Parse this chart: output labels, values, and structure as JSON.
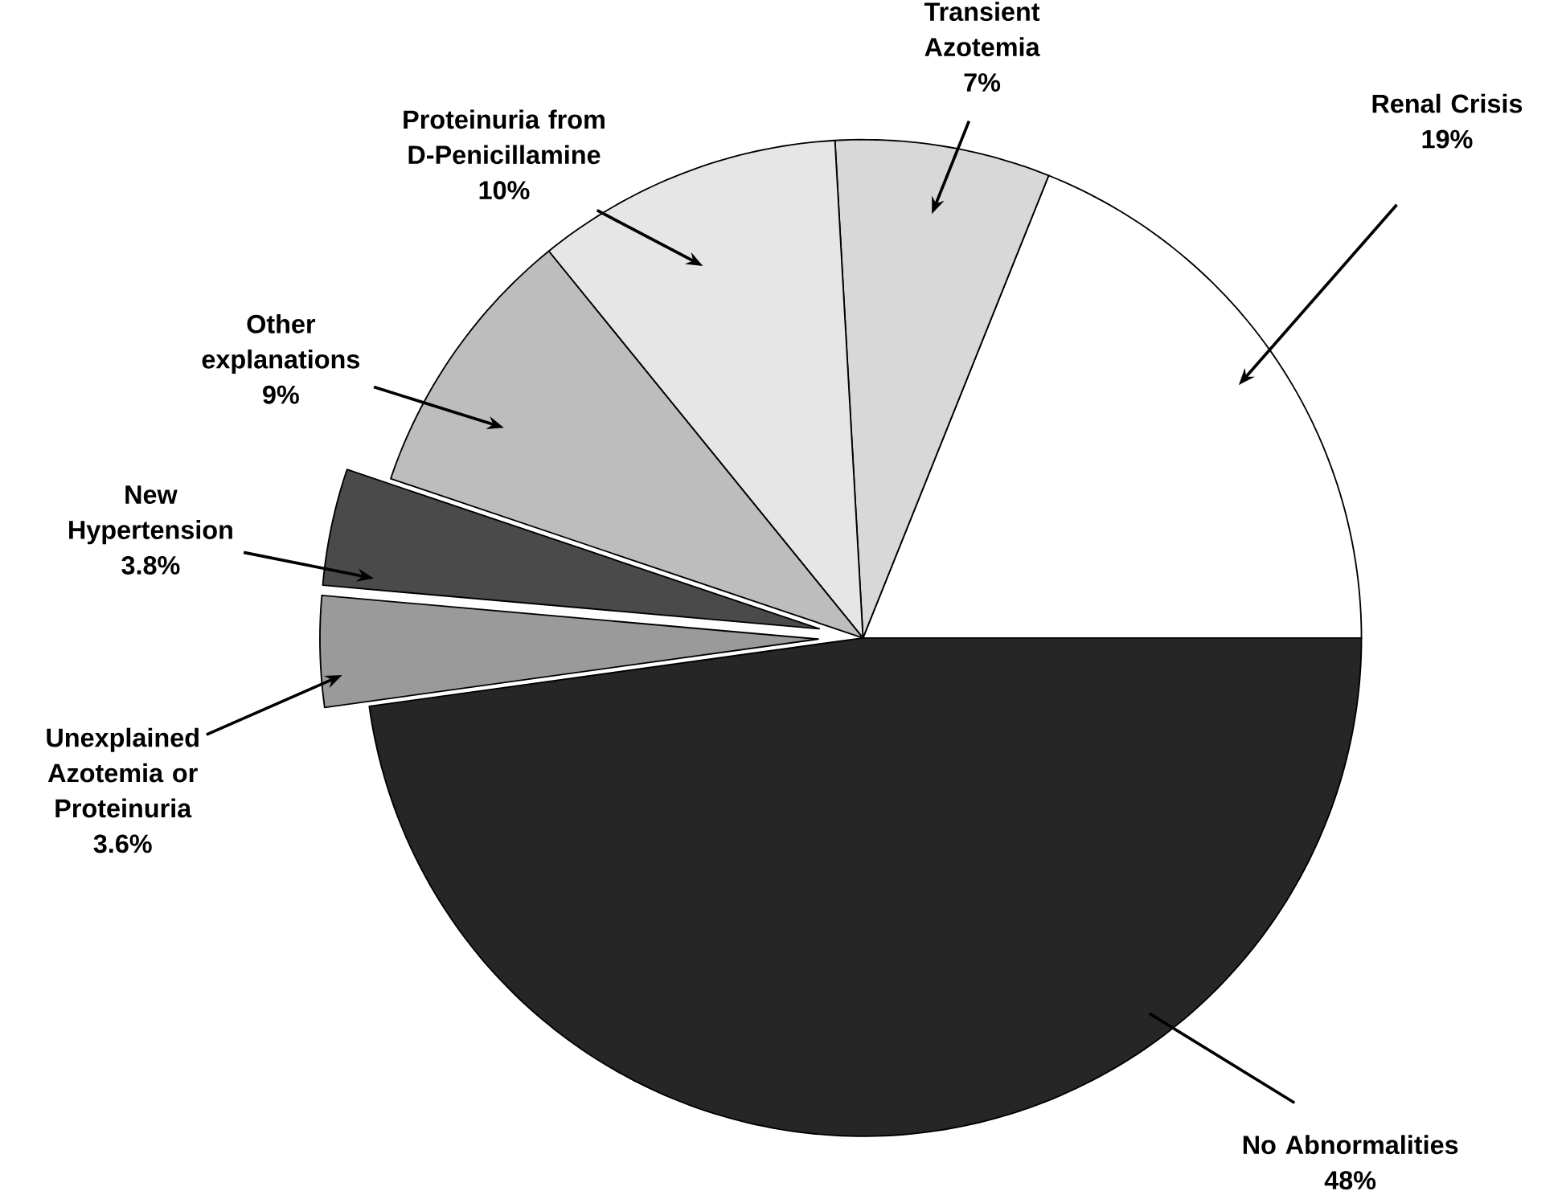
{
  "chart_data": {
    "type": "pie",
    "categories": [
      "Renal Crisis",
      "Transient Azotemia",
      "Proteinuria from D-Penicillamine",
      "Other explanations",
      "New Hypertension",
      "Unexplained Azotemia or Proteinuria",
      "No Abnormalities"
    ],
    "values": [
      19,
      7,
      10,
      9,
      3.8,
      3.6,
      48
    ],
    "value_labels": [
      "19%",
      "7%",
      "10%",
      "9%",
      "3.8%",
      "3.6%",
      "48%"
    ],
    "colors": [
      "#ffffff",
      "#d8d8d8",
      "#e6e6e6",
      "#bdbdbd",
      "#4a4a4a",
      "#9a9a9a",
      "#262626"
    ]
  }
}
